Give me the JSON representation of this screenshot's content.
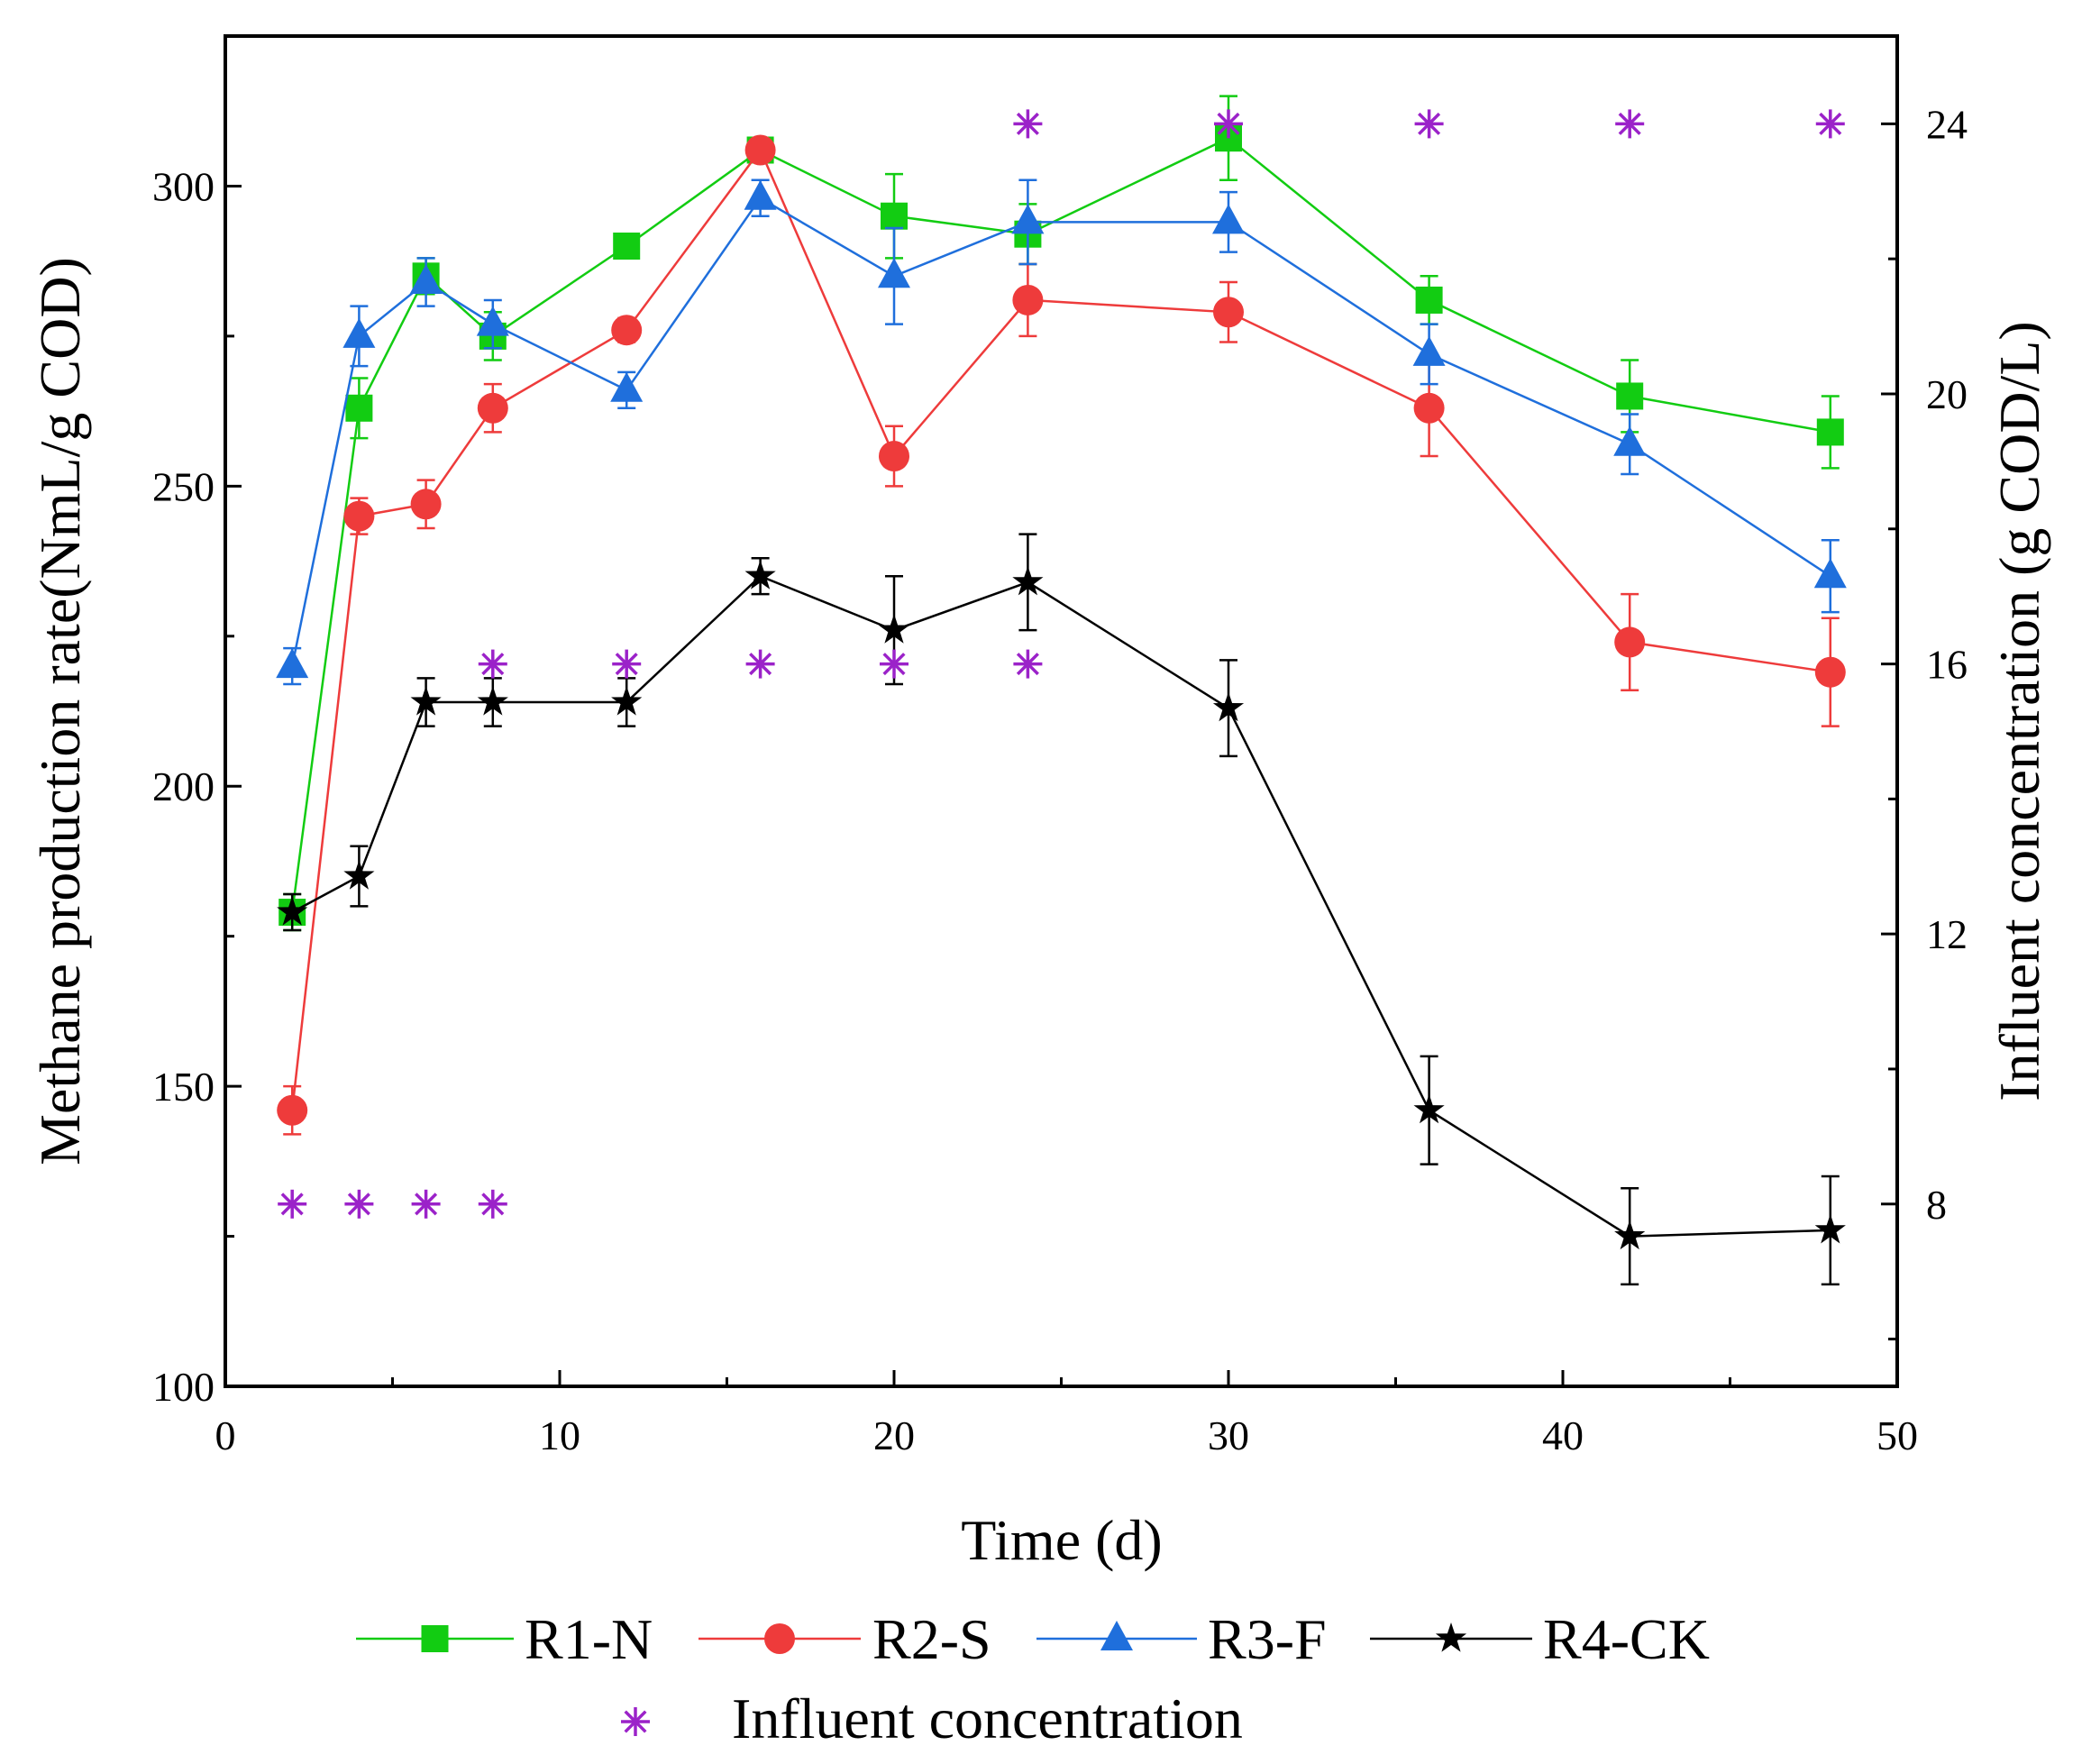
{
  "chart_data": {
    "type": "line",
    "title": "",
    "xlabel": "Time (d)",
    "ylabel": "Methane production rate(NmL/g COD)",
    "y2label": "Influent concentration (g COD/L)",
    "xlim": [
      0,
      50
    ],
    "ylim": [
      100,
      325
    ],
    "y2lim": [
      5.3,
      25.3
    ],
    "xticks": [
      0,
      10,
      20,
      30,
      40,
      50
    ],
    "yticks": [
      100,
      150,
      200,
      250,
      300
    ],
    "y2ticks": [
      8,
      12,
      16,
      20,
      24
    ],
    "grid": false,
    "legend_position": "bottom",
    "series": [
      {
        "name": "R1-N",
        "color": "#12cc12",
        "marker": "square",
        "x": [
          2,
          4,
          6,
          8,
          12,
          16,
          20,
          24,
          30,
          36,
          42,
          48
        ],
        "values": [
          179,
          263,
          285,
          275,
          290,
          306,
          295,
          292,
          308,
          281,
          265,
          259
        ],
        "errors": [
          3,
          5,
          3,
          4,
          2,
          1,
          7,
          5,
          7,
          4,
          6,
          6
        ]
      },
      {
        "name": "R2-S",
        "color": "#ee3b3b",
        "marker": "circle",
        "x": [
          2,
          4,
          6,
          8,
          12,
          16,
          20,
          24,
          30,
          36,
          42,
          48
        ],
        "values": [
          146,
          245,
          247,
          263,
          276,
          306,
          255,
          281,
          279,
          263,
          224,
          219
        ],
        "errors": [
          4,
          3,
          4,
          4,
          2,
          1,
          5,
          6,
          5,
          8,
          8,
          9
        ]
      },
      {
        "name": "R3-F",
        "color": "#1f6fdc",
        "marker": "triangle",
        "x": [
          2,
          4,
          6,
          8,
          12,
          16,
          20,
          24,
          30,
          36,
          42,
          48
        ],
        "values": [
          220,
          275,
          284,
          277,
          266,
          298,
          285,
          294,
          294,
          272,
          257,
          235
        ],
        "errors": [
          3,
          5,
          4,
          4,
          3,
          3,
          8,
          7,
          5,
          5,
          5,
          6
        ]
      },
      {
        "name": "R4-CK",
        "color": "#000000",
        "marker": "star",
        "x": [
          2,
          4,
          6,
          8,
          12,
          16,
          20,
          24,
          30,
          36,
          42,
          48
        ],
        "values": [
          179,
          185,
          214,
          214,
          214,
          235,
          226,
          234,
          213,
          146,
          125,
          126
        ],
        "errors": [
          3,
          5,
          4,
          4,
          4,
          3,
          9,
          8,
          8,
          9,
          8,
          9
        ]
      }
    ],
    "influent": {
      "name": "Influent concentration",
      "color": "#9b22c9",
      "marker": "asterisk",
      "axis": "right",
      "x": [
        2,
        4,
        6,
        8,
        8,
        12,
        16,
        20,
        24,
        24,
        30,
        36,
        42,
        48
      ],
      "values": [
        8,
        8,
        8,
        8,
        16,
        16,
        16,
        16,
        16,
        24,
        24,
        24,
        24,
        24
      ]
    }
  }
}
